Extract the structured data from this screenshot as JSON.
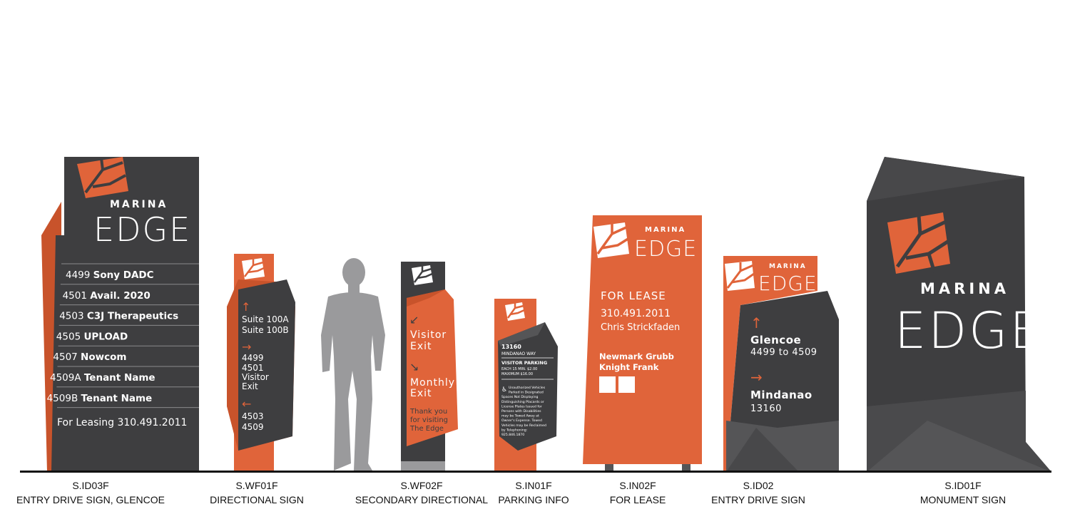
{
  "colors": {
    "orange": "#e0643a",
    "orange_dark": "#c8532b",
    "charcoal": "#3e3e40",
    "charcoal_light": "#555557",
    "gray_figure": "#9a9a9c",
    "ground": "#111111"
  },
  "brand": {
    "line1": "MARINA",
    "line2": "EDGE"
  },
  "signs": {
    "sid03f": {
      "code": "S.ID03F",
      "title": "ENTRY DRIVE SIGN, GLENCOE",
      "tenants": [
        {
          "num": "4499",
          "name": "Sony DADC"
        },
        {
          "num": "4501",
          "name": "Avail. 2020"
        },
        {
          "num": "4503",
          "name": "C3J Therapeutics"
        },
        {
          "num": "4505",
          "name": "UPLOAD"
        },
        {
          "num": "4507",
          "name": "Nowcom"
        },
        {
          "num": "4509A",
          "name": "Tenant Name"
        },
        {
          "num": "4509B",
          "name": "Tenant Name"
        }
      ],
      "leasing": "For Leasing 310.491.2011"
    },
    "swf01f": {
      "code": "S.WF01F",
      "title": "DIRECTIONAL SIGN",
      "arrow_up": "↑",
      "group1": [
        "Suite 100A",
        "Suite 100B"
      ],
      "arrow_right": "→",
      "group2": [
        "4499",
        "4501",
        "Visitor",
        "Exit"
      ],
      "arrow_left": "←",
      "group3": [
        "4503",
        "4509"
      ]
    },
    "swf02f": {
      "code": "S.WF02F",
      "title": "SECONDARY DIRECTIONAL",
      "arrow1": "↙",
      "dest1": [
        "Visitor",
        "Exit"
      ],
      "arrow2": "↘",
      "dest2": [
        "Monthly",
        "Exit"
      ],
      "thanks": [
        "Thank you",
        "for visiting",
        "The Edge"
      ]
    },
    "sin01f": {
      "code": "S.IN01F",
      "title": "PARKING INFO",
      "address_num": "13160",
      "street": "MINDANAO WAY",
      "heading": "VISITOR PARKING",
      "rate1": "EACH 15 MIN.  $2.00",
      "rate2": "MAXIMUM       $16.00",
      "notice": [
        "Unauthorized Vehicles",
        "Parked in Designated",
        "Spaces Not Displaying",
        "Distinguishing Placards or",
        "License Plates Issued for",
        "Persons with Disabilities",
        "may be Towed Away at",
        "Owner's Expense. Towed",
        "Vehicles may be Reclaimed",
        "by Telephoning:",
        "925.846.1870"
      ],
      "accessible_icon": "wheelchair-icon"
    },
    "sin02f": {
      "code": "S.IN02F",
      "title": "FOR LEASE",
      "heading": "FOR LEASE",
      "phone": "310.491.2011",
      "contact": "Chris Strickfaden",
      "firm": [
        "Newmark Grubb",
        "Knight Frank"
      ]
    },
    "sid02": {
      "code": "S.ID02",
      "title": "ENTRY DRIVE SIGN",
      "arrow1": "↑",
      "street1": "Glencoe",
      "range1": "4499 to 4509",
      "arrow2": "→",
      "street2": "Mindanao",
      "range2": "13160"
    },
    "sid01f": {
      "code": "S.ID01F",
      "title": "MONUMENT SIGN"
    }
  }
}
